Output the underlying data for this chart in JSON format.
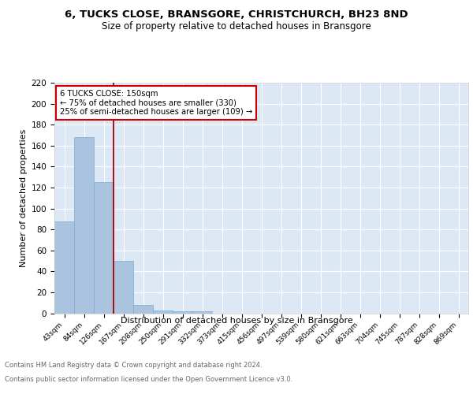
{
  "title": "6, TUCKS CLOSE, BRANSGORE, CHRISTCHURCH, BH23 8ND",
  "subtitle": "Size of property relative to detached houses in Bransgore",
  "xlabel": "Distribution of detached houses by size in Bransgore",
  "ylabel": "Number of detached properties",
  "categories": [
    "43sqm",
    "84sqm",
    "126sqm",
    "167sqm",
    "208sqm",
    "250sqm",
    "291sqm",
    "332sqm",
    "373sqm",
    "415sqm",
    "456sqm",
    "497sqm",
    "539sqm",
    "580sqm",
    "621sqm",
    "663sqm",
    "704sqm",
    "745sqm",
    "787sqm",
    "828sqm",
    "869sqm"
  ],
  "values": [
    88,
    168,
    125,
    50,
    8,
    3,
    2,
    2,
    0,
    0,
    0,
    0,
    0,
    0,
    0,
    0,
    0,
    0,
    0,
    0,
    0
  ],
  "bar_color": "#aac4e0",
  "bar_edge_color": "#7aaed0",
  "bg_color": "#dde8f5",
  "grid_color": "#ffffff",
  "vline_x": 2.5,
  "vline_color": "#aa0000",
  "annotation_text": "6 TUCKS CLOSE: 150sqm\n← 75% of detached houses are smaller (330)\n25% of semi-detached houses are larger (109) →",
  "annotation_box_color": "#ffffff",
  "annotation_box_edge": "#cc0000",
  "ylim": [
    0,
    220
  ],
  "yticks": [
    0,
    20,
    40,
    60,
    80,
    100,
    120,
    140,
    160,
    180,
    200,
    220
  ],
  "footer_line1": "Contains HM Land Registry data © Crown copyright and database right 2024.",
  "footer_line2": "Contains public sector information licensed under the Open Government Licence v3.0."
}
